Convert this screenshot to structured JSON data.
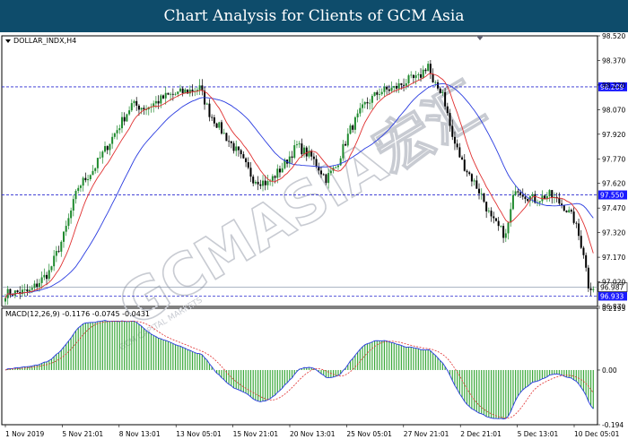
{
  "header": {
    "title": "Chart Analysis for Clients of GCM Asia"
  },
  "watermark": {
    "text": "GCMASIA宏汇",
    "subtext": "GCM CAPITAL MARKETS"
  },
  "colors": {
    "header_bg": "#0e4c6b",
    "bull_candle": "#1f8a2e",
    "bear_candle": "#000000",
    "fast_ma": "#e03030",
    "slow_ma": "#2a3ce0",
    "level_line": "#2a2ad0",
    "macd_hist": "#3aa83a",
    "macd_line": "#2a3ce0",
    "signal_line": "#e03030",
    "level_tag_bg": "#1a1aff"
  },
  "chart_data": [
    {
      "type": "candlestick",
      "symbol_label": "DOLLAR_INDX,H4",
      "ylim": [
        96.87,
        98.52
      ],
      "y_ticks": [
        "98.520",
        "98.370",
        "98.220",
        "98.070",
        "97.920",
        "97.770",
        "97.620",
        "97.470",
        "97.320",
        "97.170",
        "97.020",
        "96.870"
      ],
      "x_ticks": [
        "1 Nov 2019",
        "5 Nov 21:01",
        "8 Nov 13:01",
        "13 Nov 05:01",
        "15 Nov 21:01",
        "20 Nov 13:01",
        "25 Nov 05:01",
        "27 Nov 21:01",
        "2 Dec 21:01",
        "5 Dec 13:01",
        "10 Dec 05:01"
      ],
      "levels": [
        {
          "value": 98.209,
          "label": "98.209",
          "style": "dashed"
        },
        {
          "value": 97.55,
          "label": "97.550",
          "style": "dashed"
        },
        {
          "value": 96.933,
          "label": "96.933",
          "style": "dashed"
        }
      ],
      "current_price": {
        "value": 96.987,
        "label": "96.987"
      },
      "waypoints": [
        [
          0,
          96.95
        ],
        [
          10,
          96.96
        ],
        [
          18,
          97.08
        ],
        [
          24,
          97.3
        ],
        [
          30,
          97.6
        ],
        [
          36,
          97.7
        ],
        [
          44,
          97.9
        ],
        [
          52,
          98.1
        ],
        [
          58,
          98.08
        ],
        [
          66,
          98.15
        ],
        [
          74,
          98.18
        ],
        [
          80,
          98.2
        ],
        [
          84,
          98.05
        ],
        [
          90,
          97.92
        ],
        [
          96,
          97.8
        ],
        [
          102,
          97.65
        ],
        [
          108,
          97.62
        ],
        [
          114,
          97.72
        ],
        [
          120,
          97.85
        ],
        [
          126,
          97.78
        ],
        [
          132,
          97.65
        ],
        [
          136,
          97.72
        ],
        [
          142,
          97.95
        ],
        [
          148,
          98.1
        ],
        [
          154,
          98.18
        ],
        [
          160,
          98.2
        ],
        [
          166,
          98.25
        ],
        [
          170,
          98.26
        ],
        [
          174,
          98.35
        ],
        [
          176,
          98.22
        ],
        [
          180,
          98.18
        ],
        [
          184,
          97.9
        ],
        [
          188,
          97.75
        ],
        [
          192,
          97.65
        ],
        [
          196,
          97.55
        ],
        [
          200,
          97.4
        ],
        [
          206,
          97.3
        ],
        [
          210,
          97.6
        ],
        [
          214,
          97.55
        ],
        [
          218,
          97.52
        ],
        [
          224,
          97.55
        ],
        [
          230,
          97.48
        ],
        [
          234,
          97.4
        ],
        [
          238,
          97.2
        ],
        [
          240,
          97.0
        ],
        [
          242,
          96.99
        ]
      ],
      "series": [
        {
          "name": "fast moving average",
          "period": 10
        },
        {
          "name": "slow moving average",
          "period": 30
        }
      ]
    },
    {
      "type": "histogram+line",
      "label": "MACD(12,26,9) -0.1176 -0.0745 -0.0431",
      "ylim": [
        -0.194,
        0.2193
      ],
      "y_ticks": [
        "0.2193",
        "0.00",
        "-0.194"
      ],
      "fast": 12,
      "slow": 26,
      "signal": 9
    }
  ]
}
